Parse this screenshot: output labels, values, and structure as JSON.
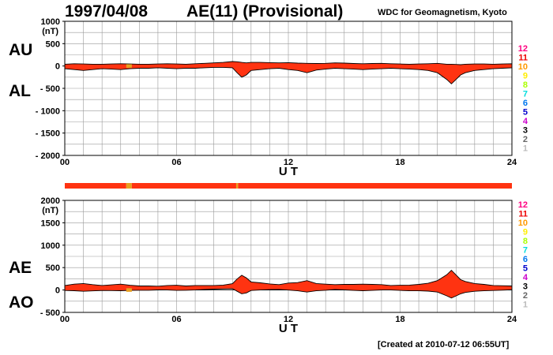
{
  "header": {
    "date": "1997/04/08",
    "title": "AE(11) (Provisional)",
    "organization": "WDC for Geomagnetism, Kyoto",
    "created": "[Created at 2010-07-12 06:55UT]"
  },
  "side_labels": {
    "au": "AU",
    "al": "AL",
    "ae": "AE",
    "ao": "AO"
  },
  "station_counts": [
    "12",
    "11",
    "10",
    "9",
    "8",
    "7",
    "6",
    "5",
    "4",
    "3",
    "2",
    "1"
  ],
  "colors": {
    "fill": "#ff3311",
    "outline": "#000000",
    "flag_orange": "#e8a020",
    "grid": "#999999",
    "station_counts": [
      "#ff0080",
      "#ee0000",
      "#ff9900",
      "#ffee00",
      "#aaff00",
      "#00dddd",
      "#0077ee",
      "#0000cc",
      "#cc00cc",
      "#000000",
      "#666666",
      "#bbbbbb"
    ]
  },
  "chart_data": [
    {
      "type": "area",
      "name": "AU/AL",
      "xlabel": "U T",
      "unit": "(nT)",
      "xlim": [
        0,
        24
      ],
      "ylim": [
        -2000,
        1000
      ],
      "x_ticks": [
        "00",
        "06",
        "12",
        "18",
        "24"
      ],
      "y_ticks": [
        "1000",
        "500",
        "0",
        "- 500",
        "- 1000",
        "- 1500",
        "- 2000"
      ],
      "x": [
        0,
        0.5,
        1,
        1.5,
        2,
        2.5,
        3,
        3.5,
        4,
        4.5,
        5,
        5.5,
        6,
        6.5,
        7,
        7.5,
        8,
        8.5,
        9,
        9.25,
        9.5,
        9.75,
        10,
        10.5,
        11,
        11.5,
        12,
        12.5,
        13,
        13.5,
        14,
        14.5,
        15,
        15.5,
        16,
        16.5,
        17,
        17.5,
        18,
        18.5,
        19,
        19.5,
        20,
        20.5,
        20.75,
        21,
        21.25,
        21.5,
        22,
        22.5,
        23,
        23.5,
        24
      ],
      "upper": [
        40,
        50,
        45,
        40,
        40,
        45,
        50,
        45,
        40,
        40,
        45,
        50,
        45,
        40,
        50,
        60,
        70,
        80,
        100,
        95,
        80,
        70,
        80,
        80,
        75,
        70,
        75,
        65,
        60,
        55,
        60,
        70,
        65,
        55,
        50,
        55,
        60,
        50,
        45,
        40,
        45,
        50,
        60,
        40,
        40,
        35,
        30,
        40,
        45,
        45,
        40,
        45,
        50
      ],
      "lower": [
        -60,
        -80,
        -100,
        -80,
        -60,
        -70,
        -80,
        -60,
        -50,
        -50,
        -40,
        -50,
        -60,
        -50,
        -50,
        -40,
        -30,
        -30,
        -40,
        -150,
        -250,
        -200,
        -100,
        -80,
        -60,
        -50,
        -80,
        -100,
        -150,
        -90,
        -70,
        -50,
        -60,
        -70,
        -80,
        -70,
        -60,
        -50,
        -60,
        -70,
        -80,
        -100,
        -150,
        -300,
        -400,
        -300,
        -200,
        -150,
        -100,
        -80,
        -60,
        -50,
        -40
      ]
    },
    {
      "type": "area",
      "name": "AE/AO",
      "xlabel": "U T",
      "unit": "(nT)",
      "xlim": [
        0,
        24
      ],
      "ylim": [
        -500,
        2000
      ],
      "x_ticks": [
        "00",
        "06",
        "12",
        "18",
        "24"
      ],
      "y_ticks": [
        "2000",
        "1500",
        "1000",
        "500",
        "0",
        "- 500"
      ],
      "x": [
        0,
        0.5,
        1,
        1.5,
        2,
        2.5,
        3,
        3.5,
        4,
        4.5,
        5,
        5.5,
        6,
        6.5,
        7,
        7.5,
        8,
        8.5,
        9,
        9.25,
        9.5,
        9.75,
        10,
        10.5,
        11,
        11.5,
        12,
        12.5,
        13,
        13.5,
        14,
        14.5,
        15,
        15.5,
        16,
        16.5,
        17,
        17.5,
        18,
        18.5,
        19,
        19.5,
        20,
        20.5,
        20.75,
        21,
        21.25,
        21.5,
        22,
        22.5,
        23,
        23.5,
        24
      ],
      "upper": [
        100,
        130,
        145,
        120,
        100,
        115,
        130,
        105,
        90,
        90,
        85,
        100,
        105,
        90,
        100,
        100,
        100,
        110,
        140,
        245,
        330,
        270,
        180,
        160,
        135,
        120,
        155,
        165,
        210,
        145,
        130,
        120,
        125,
        125,
        130,
        125,
        120,
        100,
        105,
        110,
        125,
        150,
        210,
        340,
        440,
        335,
        230,
        190,
        145,
        125,
        100,
        95,
        90
      ],
      "lower": [
        -10,
        -15,
        -28,
        -20,
        -10,
        -12,
        -15,
        -8,
        -5,
        -5,
        2,
        0,
        -8,
        -5,
        0,
        10,
        20,
        25,
        30,
        -28,
        -85,
        -65,
        -10,
        0,
        8,
        10,
        -2,
        -18,
        -45,
        -18,
        -5,
        10,
        2,
        -8,
        -15,
        -8,
        0,
        0,
        -8,
        -15,
        -18,
        -25,
        -45,
        -130,
        -180,
        -132,
        -85,
        -55,
        -28,
        -18,
        -10,
        -3,
        5
      ]
    }
  ],
  "data_flags": [
    {
      "from": 0,
      "to": 3.3,
      "color": "#ff3311"
    },
    {
      "from": 3.3,
      "to": 3.6,
      "color": "#e8a020"
    },
    {
      "from": 3.6,
      "to": 9.2,
      "color": "#ff3311"
    },
    {
      "from": 9.2,
      "to": 9.3,
      "color": "#e8a020"
    },
    {
      "from": 9.3,
      "to": 24,
      "color": "#ff3311"
    }
  ]
}
